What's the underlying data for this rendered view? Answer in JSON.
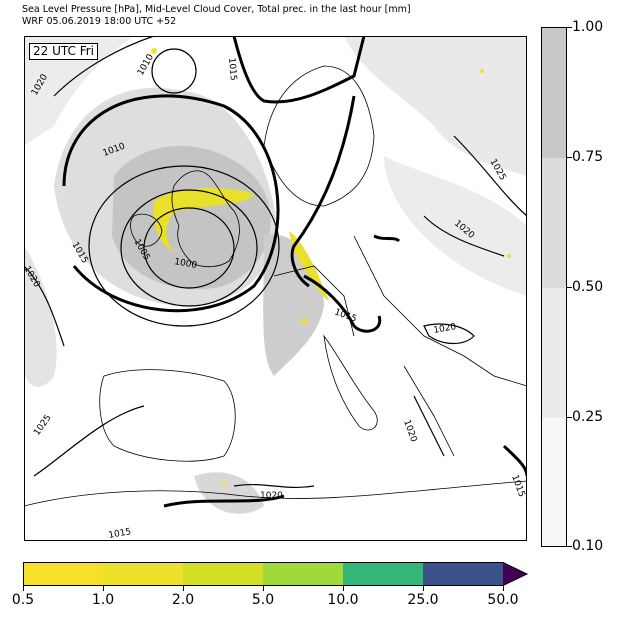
{
  "header": {
    "line1": "Sea Level Pressure [hPa], Mid-Level Cloud Cover, Total prec. in the last hour [mm]",
    "line2": "WRF 05.06.2019 18:00 UTC +52"
  },
  "map": {
    "time_label": "22 UTC Fri",
    "isobar_labels": [
      "1010",
      "1015",
      "1020",
      "1010",
      "1005",
      "1000",
      "1015",
      "1020",
      "1025",
      "1020",
      "1015",
      "1020",
      "1025",
      "1020",
      "1020",
      "1015",
      "1015"
    ]
  },
  "cloud_colorbar": {
    "ticks": [
      "1.00",
      "0.75",
      "0.50",
      "0.25",
      "0.10"
    ],
    "colors": [
      "#c8c8c8",
      "#dcdcdc",
      "#ebebeb",
      "#f7f7f7"
    ]
  },
  "precip_colorbar": {
    "ticks": [
      "0.5",
      "1.0",
      "2.0",
      "5.0",
      "10.0",
      "25.0",
      "50.0"
    ],
    "colors": [
      "#f6e02b",
      "#ece02a",
      "#d4df23",
      "#9fd93a",
      "#35b779",
      "#3b528b",
      "#440154"
    ]
  }
}
